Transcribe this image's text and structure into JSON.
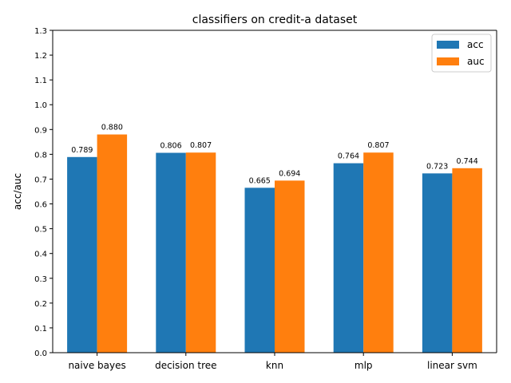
{
  "chart_data": {
    "type": "bar",
    "title": "classifiers on credit-a dataset",
    "xlabel": "",
    "ylabel": "acc/auc",
    "categories": [
      "naive bayes",
      "decision tree",
      "knn",
      "mlp",
      "linear svm"
    ],
    "series": [
      {
        "name": "acc",
        "color": "#1f77b4",
        "values": [
          0.789,
          0.806,
          0.665,
          0.764,
          0.723
        ]
      },
      {
        "name": "auc",
        "color": "#ff7f0e",
        "values": [
          0.88,
          0.807,
          0.694,
          0.807,
          0.744
        ]
      }
    ],
    "ylim": [
      0,
      1.3
    ],
    "yticks": [
      "0.0",
      "0.1",
      "0.2",
      "0.3",
      "0.4",
      "0.5",
      "0.6",
      "0.7",
      "0.8",
      "0.9",
      "1.0",
      "1.1",
      "1.2",
      "1.3"
    ],
    "data_labels": true,
    "grid": false,
    "legend_position": "top-right"
  }
}
